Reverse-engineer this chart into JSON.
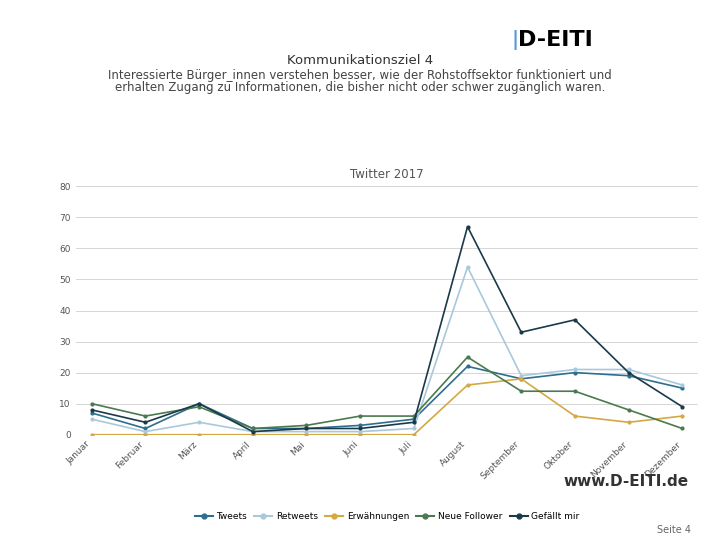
{
  "title": "Twitter 2017",
  "header_line1": "Kommunikationsziel 4",
  "header_line2": "Interessierte Bürger_innen verstehen besser, wie der Rohstoffsektor funktioniert und",
  "header_line3": "erhalten Zugang zu Informationen, die bisher nicht oder schwer zugänglich waren.",
  "footer_url": "www.D-EITI.de",
  "page_label": "Seite 4",
  "months": [
    "Januar",
    "Februar",
    "März",
    "April",
    "Mai",
    "Juni",
    "Juli",
    "August",
    "September",
    "Oktober",
    "November",
    "Dezember"
  ],
  "series_order": [
    "Tweets",
    "Retweets",
    "Erwähnungen",
    "Neue Follower",
    "Gefällt mir"
  ],
  "series": {
    "Tweets": {
      "color": "#2E6E8E",
      "values": [
        7,
        2,
        10,
        2,
        2,
        3,
        5,
        22,
        18,
        20,
        19,
        15
      ]
    },
    "Retweets": {
      "color": "#A8C8DC",
      "values": [
        5,
        1,
        4,
        1,
        1,
        1,
        2,
        54,
        19,
        21,
        21,
        16
      ]
    },
    "Erwähnungen": {
      "color": "#D4A843",
      "values": [
        0,
        0,
        0,
        0,
        0,
        0,
        0,
        16,
        18,
        6,
        4,
        6
      ]
    },
    "Neue Follower": {
      "color": "#4A7A4E",
      "values": [
        10,
        6,
        9,
        2,
        3,
        6,
        6,
        25,
        14,
        14,
        8,
        2
      ]
    },
    "Gefällt mir": {
      "color": "#1A3A4A",
      "values": [
        8,
        4,
        10,
        1,
        2,
        2,
        4,
        67,
        33,
        37,
        20,
        9
      ]
    }
  },
  "ylim": [
    0,
    80
  ],
  "yticks": [
    0,
    10,
    20,
    30,
    40,
    50,
    60,
    70,
    80
  ],
  "background_color": "#FFFFFF",
  "grid_color": "#D0D0D0",
  "top_bar_color": "#5B9BD5",
  "bottom_bar_color": "#5B9BD5",
  "top_bar_thin_color": "#B0C8DC"
}
